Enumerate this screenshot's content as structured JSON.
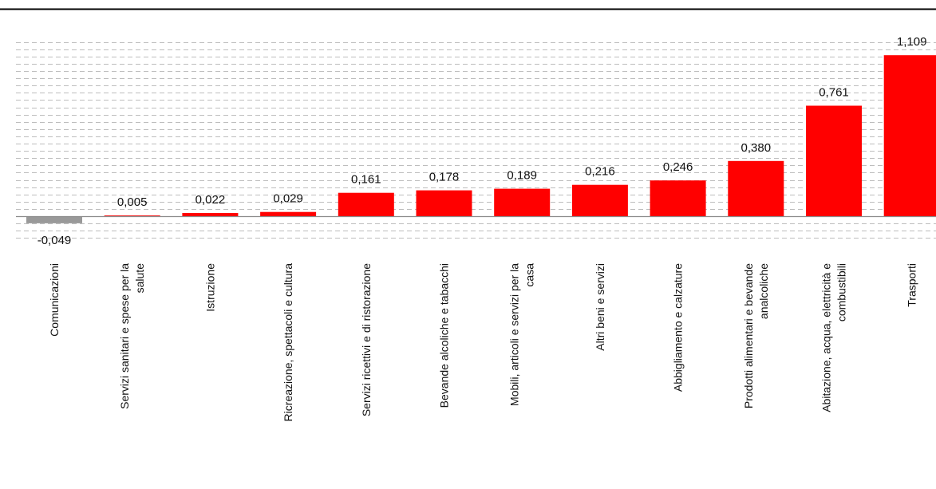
{
  "chart_data": {
    "type": "bar",
    "title": "",
    "xlabel": "",
    "ylabel": "",
    "ylim": [
      -0.2,
      1.2
    ],
    "grid": true,
    "categories": [
      [
        "Comunicazioni"
      ],
      [
        "Servizi sanitari e spese per la",
        "salute"
      ],
      [
        "Istruzione"
      ],
      [
        "Ricreazione, spettacoli e cultura"
      ],
      [
        "Servizi ricettivi e di ristorazione"
      ],
      [
        "Bevande alcoliche e tabacchi"
      ],
      [
        "Mobili, articoli e servizi per la",
        "casa"
      ],
      [
        "Altri beni e servizi"
      ],
      [
        "Abbigliamento e calzature"
      ],
      [
        "Prodotti alimentari e bevande",
        "analcoliche"
      ],
      [
        "Abitazione, acqua, elettricità e",
        "combustibili"
      ],
      [
        "Trasporti"
      ]
    ],
    "values": [
      -0.049,
      0.005,
      0.022,
      0.029,
      0.161,
      0.178,
      0.189,
      0.216,
      0.246,
      0.38,
      0.761,
      1.109
    ],
    "value_labels": [
      "-0,049",
      "0,005",
      "0,022",
      "0,029",
      "0,161",
      "0,178",
      "0,189",
      "0,216",
      "0,246",
      "0,380",
      "0,761",
      "1,109"
    ],
    "colors": {
      "positive": "#ff0000",
      "negative": "#999999",
      "grid": "#bdbdbd",
      "axis": "#8c8c8c",
      "top_rule": "#000000"
    }
  }
}
